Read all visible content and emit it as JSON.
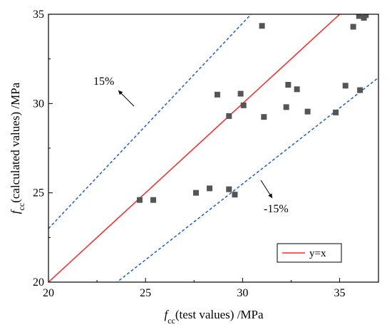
{
  "chart_data": {
    "type": "scatter",
    "xlabel": "f",
    "xlabel_sub": "cc",
    "xlabel_rest": "(test values) /MPa",
    "ylabel": "f",
    "ylabel_sub": "cc",
    "ylabel_rest": "(calculated values) /MPa",
    "xlim": [
      20,
      37
    ],
    "ylim": [
      20,
      35
    ],
    "xticks": [
      "20",
      "25",
      "30",
      "35"
    ],
    "yticks": [
      "20",
      "25",
      "30",
      "35"
    ],
    "grid": false,
    "legend": {
      "label": "y=x",
      "placement": "bottom-right"
    },
    "annotations": {
      "upper": "15%",
      "lower": "-15%"
    },
    "colors": {
      "points": "#555555",
      "identity": "#ff2a2a",
      "bounds": "#1a5fd6"
    },
    "points": [
      [
        24.7,
        24.6
      ],
      [
        25.4,
        24.6
      ],
      [
        27.6,
        25.0
      ],
      [
        28.3,
        25.25
      ],
      [
        29.3,
        25.2
      ],
      [
        29.6,
        24.9
      ],
      [
        28.7,
        30.5
      ],
      [
        29.3,
        29.3
      ],
      [
        29.9,
        30.55
      ],
      [
        30.05,
        29.9
      ],
      [
        31.0,
        34.35
      ],
      [
        31.1,
        29.25
      ],
      [
        32.25,
        29.8
      ],
      [
        32.35,
        31.05
      ],
      [
        32.8,
        30.8
      ],
      [
        33.35,
        29.55
      ],
      [
        34.8,
        29.5
      ],
      [
        35.3,
        31.0
      ],
      [
        35.7,
        34.3
      ],
      [
        36.0,
        34.9
      ],
      [
        36.05,
        30.75
      ],
      [
        36.25,
        34.8
      ],
      [
        36.35,
        34.95
      ]
    ]
  }
}
